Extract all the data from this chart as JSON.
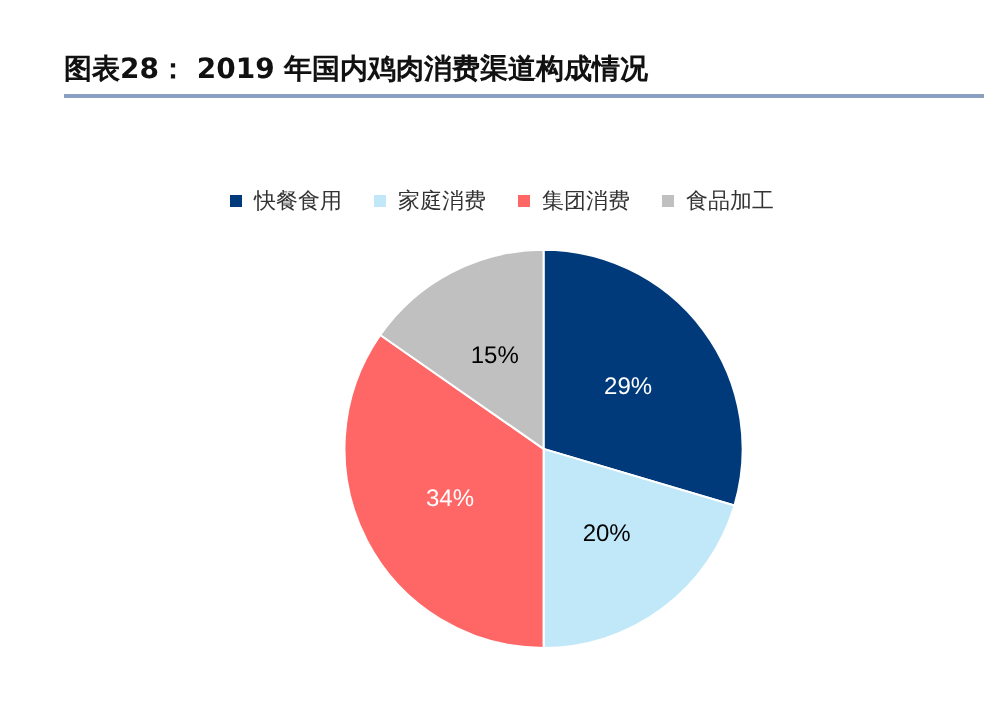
{
  "chart_data": {
    "type": "pie",
    "title": "图表28： 2019 年国内鸡肉消费渠道构成情况",
    "categories": [
      "快餐食用",
      "家庭消费",
      "集团消费",
      "食品加工"
    ],
    "values": [
      29,
      20,
      34,
      15
    ],
    "colors": [
      "#003a7a",
      "#c0e8f8",
      "#ff6666",
      "#c0c0c0"
    ],
    "value_labels": [
      "29%",
      "20%",
      "34%",
      "15%"
    ],
    "legend": "top"
  }
}
